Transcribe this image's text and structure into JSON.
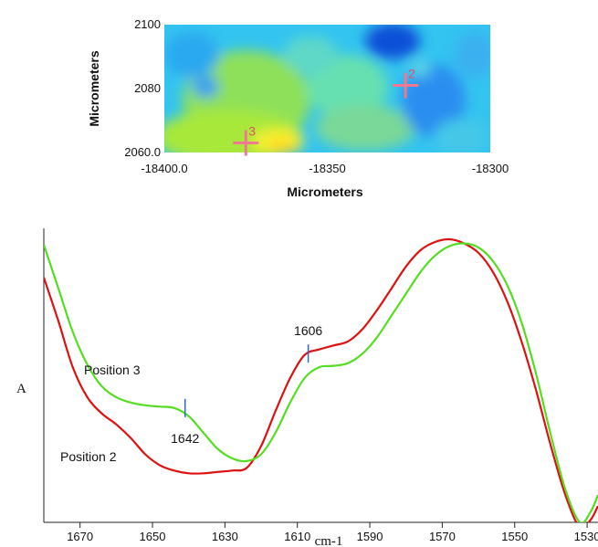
{
  "chart_data": [
    {
      "type": "heatmap",
      "xlabel": "Micrometers",
      "ylabel": "Micrometers",
      "xlim": [
        -18400,
        -18300
      ],
      "ylim": [
        2060,
        2100
      ],
      "xticks": [
        "-18400.0",
        "-18350",
        "-18300"
      ],
      "yticks": [
        "2060.0",
        "2080",
        "2100"
      ],
      "markers": [
        {
          "label": "2",
          "x": -18326,
          "y": 2081,
          "color": "#e05060"
        },
        {
          "label": "3",
          "x": -18375,
          "y": 2063,
          "color": "#e05060"
        }
      ]
    },
    {
      "type": "line",
      "xlabel": "cm-1",
      "ylabel": "A",
      "xlim": [
        1680,
        1527
      ],
      "ylim": [
        0,
        1
      ],
      "xticks": [
        1670,
        1650,
        1630,
        1610,
        1590,
        1570,
        1550,
        1530
      ],
      "series": [
        {
          "name": "Position 2",
          "color": "#dd1111",
          "x": [
            1680,
            1676,
            1672,
            1668,
            1664,
            1660,
            1656,
            1652,
            1648,
            1644,
            1640,
            1636,
            1632,
            1628,
            1624,
            1620,
            1616,
            1612,
            1608,
            1604,
            1600,
            1596,
            1592,
            1588,
            1584,
            1580,
            1576,
            1572,
            1568,
            1564,
            1560,
            1556,
            1552,
            1548,
            1544,
            1540,
            1536,
            1532,
            1529,
            1527
          ],
          "y": [
            0.88,
            0.72,
            0.55,
            0.44,
            0.38,
            0.34,
            0.29,
            0.23,
            0.19,
            0.17,
            0.16,
            0.16,
            0.165,
            0.17,
            0.18,
            0.26,
            0.39,
            0.51,
            0.595,
            0.615,
            0.63,
            0.645,
            0.69,
            0.76,
            0.84,
            0.92,
            0.98,
            1.01,
            1.02,
            1.005,
            0.97,
            0.9,
            0.79,
            0.64,
            0.46,
            0.26,
            0.08,
            -0.04,
            -0.01,
            0.04
          ]
        },
        {
          "name": "Position 3",
          "color": "#55dd22",
          "x": [
            1680,
            1676,
            1672,
            1668,
            1664,
            1660,
            1656,
            1652,
            1648,
            1644,
            1640,
            1636,
            1632,
            1628,
            1624,
            1620,
            1616,
            1612,
            1608,
            1604,
            1600,
            1596,
            1592,
            1588,
            1584,
            1580,
            1576,
            1572,
            1568,
            1564,
            1560,
            1556,
            1552,
            1548,
            1544,
            1540,
            1536,
            1532,
            1529,
            1527
          ],
          "y": [
            1.0,
            0.84,
            0.68,
            0.56,
            0.48,
            0.44,
            0.42,
            0.41,
            0.405,
            0.4,
            0.37,
            0.31,
            0.25,
            0.215,
            0.205,
            0.23,
            0.31,
            0.42,
            0.51,
            0.55,
            0.555,
            0.565,
            0.6,
            0.66,
            0.74,
            0.82,
            0.9,
            0.96,
            0.995,
            1.005,
            0.99,
            0.94,
            0.85,
            0.71,
            0.52,
            0.3,
            0.1,
            -0.02,
            0.02,
            0.08
          ]
        }
      ],
      "annotations": [
        {
          "text": "1642",
          "x": 1641,
          "y": 0.4,
          "color": "#3366cc"
        },
        {
          "text": "1606",
          "x": 1607,
          "y": 0.6,
          "color": "#3366cc"
        }
      ]
    }
  ]
}
